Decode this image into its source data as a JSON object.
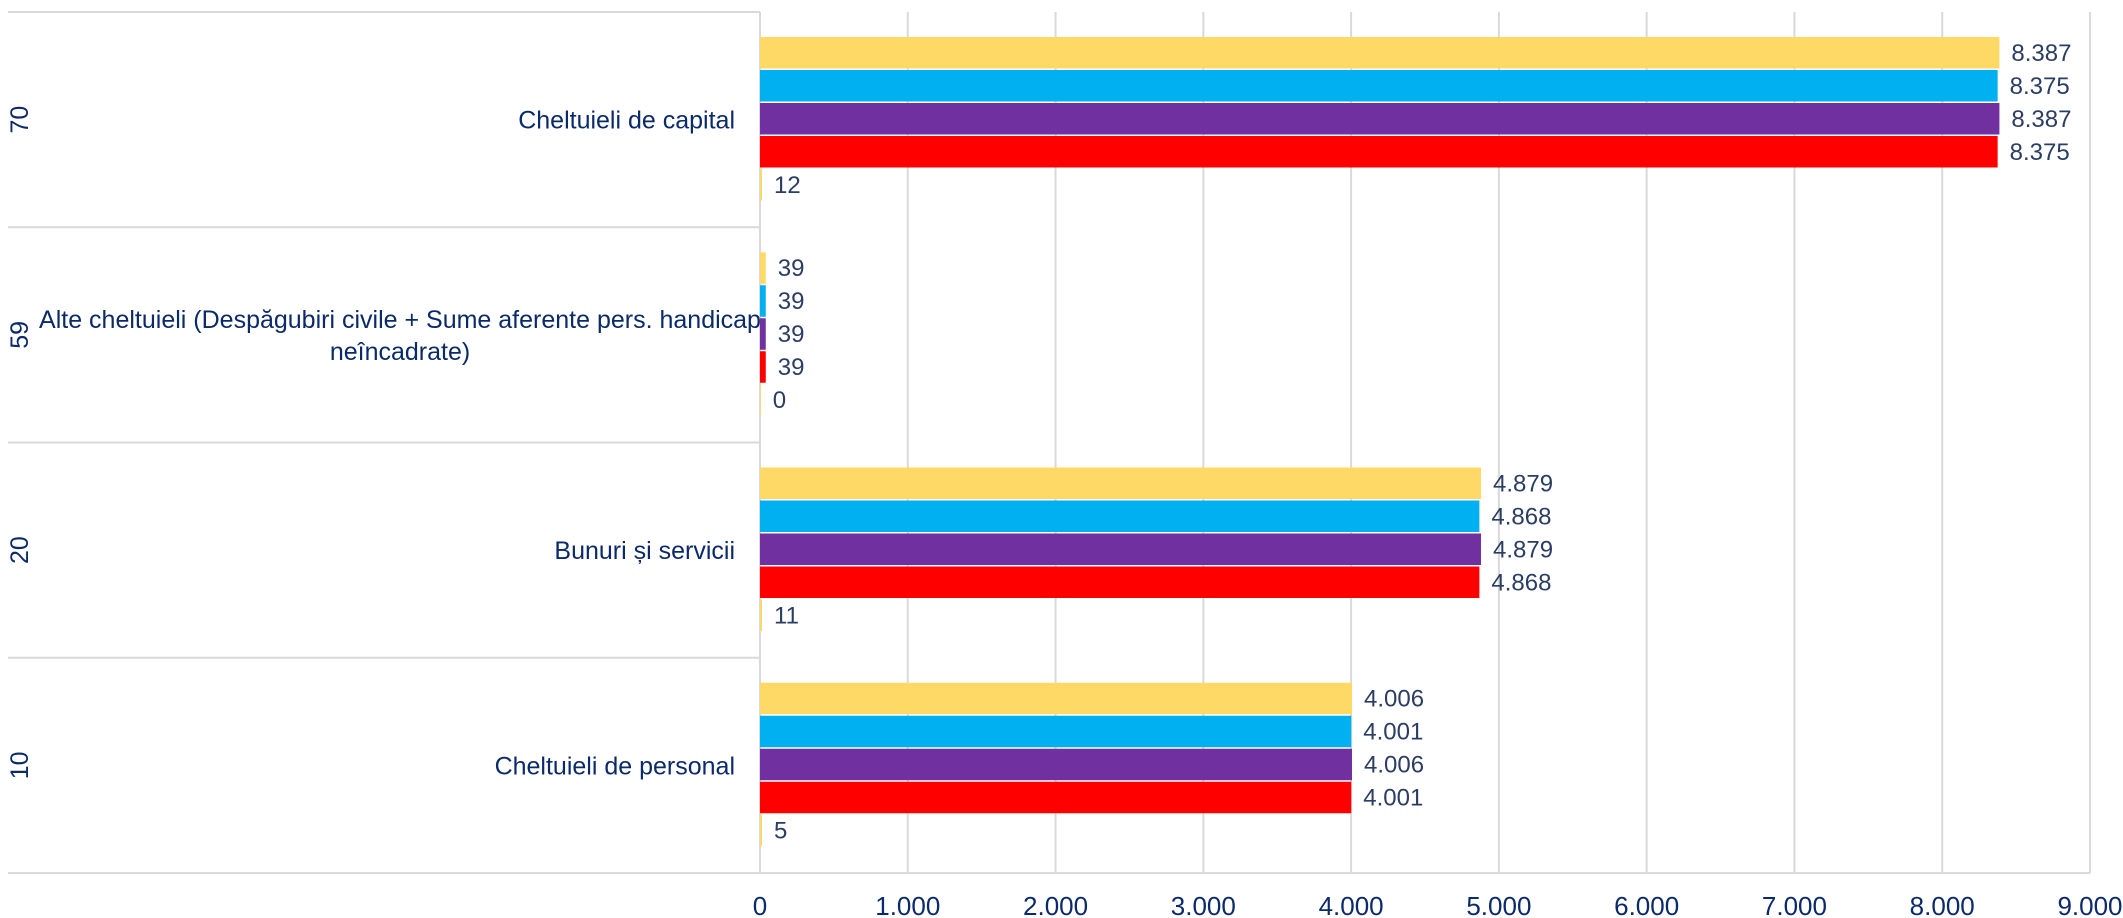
{
  "chart_data": {
    "type": "bar",
    "orientation": "horizontal",
    "xlim": [
      0,
      9000
    ],
    "x_ticks": [
      0,
      1000,
      2000,
      3000,
      4000,
      5000,
      6000,
      7000,
      8000,
      9000
    ],
    "x_tick_labels": [
      "0",
      "1.000",
      "2.000",
      "3.000",
      "4.000",
      "5.000",
      "6.000",
      "7.000",
      "8.000",
      "9.000"
    ],
    "grid": true,
    "categories": [
      {
        "code": "70",
        "label": "Cheltuieli de capital",
        "label_lines": [
          "Cheltuieli de capital"
        ]
      },
      {
        "code": "59",
        "label": "Alte cheltuieli (Despăgubiri civile + Sume aferente pers. handicap neîncadrate)",
        "label_lines": [
          "Alte cheltuieli (Despăgubiri civile + Sume aferente pers. handicap",
          "neîncadrate)"
        ]
      },
      {
        "code": "20",
        "label": "Bunuri și servicii",
        "label_lines": [
          "Bunuri și servicii"
        ]
      },
      {
        "code": "10",
        "label": "Cheltuieli de personal",
        "label_lines": [
          "Cheltuieli de personal"
        ]
      }
    ],
    "series": [
      {
        "color": "#FFD966",
        "values": [
          8387,
          39,
          4879,
          4006
        ],
        "labels": [
          "8.387",
          "39",
          "4.879",
          "4.006"
        ]
      },
      {
        "color": "#00B0F0",
        "values": [
          8375,
          39,
          4868,
          4001
        ],
        "labels": [
          "8.375",
          "39",
          "4.868",
          "4.001"
        ]
      },
      {
        "color": "#7030A0",
        "values": [
          8387,
          39,
          4879,
          4006
        ],
        "labels": [
          "8.387",
          "39",
          "4.879",
          "4.006"
        ]
      },
      {
        "color": "#FF0000",
        "values": [
          8375,
          39,
          4868,
          4001
        ],
        "labels": [
          "8.375",
          "39",
          "4.868",
          "4.001"
        ]
      },
      {
        "color": "#FFD966",
        "values": [
          12,
          0,
          11,
          5
        ],
        "labels": [
          "12",
          "0",
          "11",
          "5"
        ]
      }
    ]
  }
}
